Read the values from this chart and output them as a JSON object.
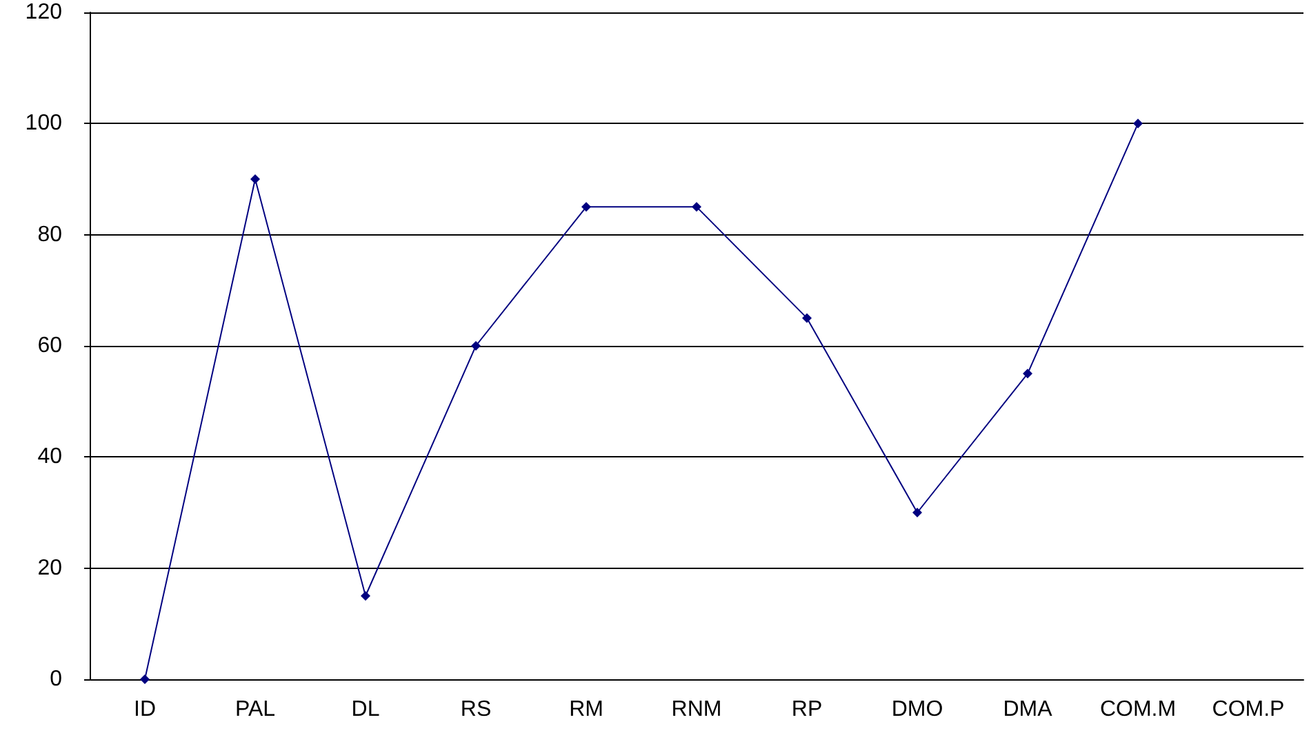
{
  "chart_data": {
    "type": "line",
    "categories": [
      "ID",
      "PAL",
      "DL",
      "RS",
      "RM",
      "RNM",
      "RP",
      "DMO",
      "DMA",
      "COM.M",
      "COM.P"
    ],
    "series": [
      {
        "color": "#000080",
        "values": [
          0,
          90,
          15,
          60,
          85,
          85,
          65,
          30,
          55,
          100,
          null
        ]
      }
    ],
    "ylim": [
      0,
      120
    ],
    "yticks": [
      0,
      20,
      40,
      60,
      80,
      100,
      120
    ],
    "grid": "y",
    "marker": "diamond",
    "line_style": "solid"
  }
}
